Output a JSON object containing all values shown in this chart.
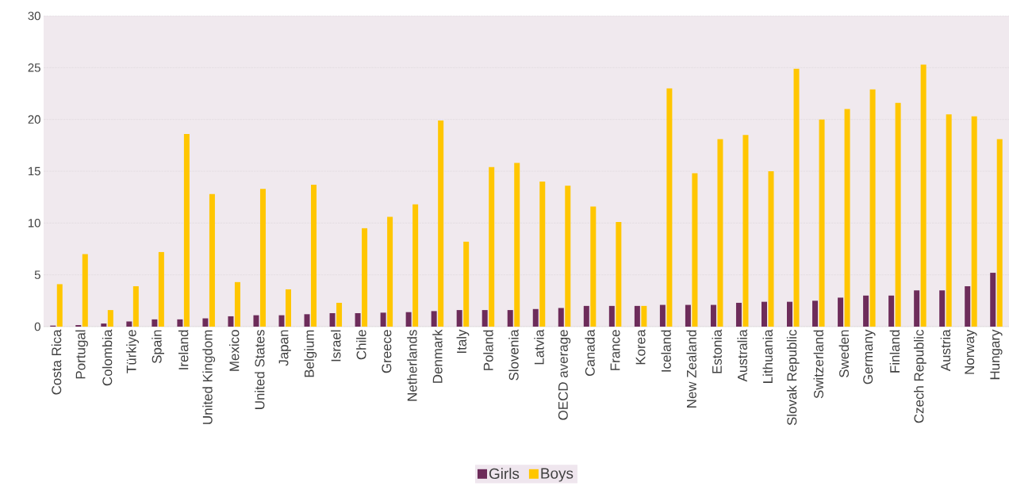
{
  "chart_data": {
    "type": "bar",
    "categories": [
      "Costa Rica",
      "Portugal",
      "Colombia",
      "Türkiye",
      "Spain",
      "Ireland",
      "United Kingdom",
      "Mexico",
      "United States",
      "Japan",
      "Belgium",
      "Israel",
      "Chile",
      "Greece",
      "Netherlands",
      "Denmark",
      "Italy",
      "Poland",
      "Slovenia",
      "Latvia",
      "OECD average",
      "Canada",
      "France",
      "Korea",
      "Iceland",
      "New Zealand",
      "Estonia",
      "Australia",
      "Lithuania",
      "Slovak Republic",
      "Switzerland",
      "Sweden",
      "Germany",
      "Finland",
      "Czech Republic",
      "Austria",
      "Norway",
      "Hungary"
    ],
    "series": [
      {
        "name": "Girls",
        "color": "#6d2c5a",
        "values": [
          0.1,
          0.15,
          0.3,
          0.5,
          0.7,
          0.7,
          0.8,
          1.0,
          1.1,
          1.1,
          1.2,
          1.3,
          1.3,
          1.35,
          1.4,
          1.5,
          1.6,
          1.6,
          1.6,
          1.7,
          1.8,
          2.0,
          2.0,
          2.0,
          2.1,
          2.1,
          2.1,
          2.3,
          2.4,
          2.4,
          2.5,
          2.8,
          3.0,
          3.0,
          3.5,
          3.5,
          3.9,
          5.2
        ]
      },
      {
        "name": "Boys",
        "color": "#ffc600",
        "values": [
          4.1,
          7.0,
          1.6,
          3.9,
          7.2,
          18.6,
          12.8,
          4.3,
          13.3,
          3.6,
          13.7,
          2.3,
          9.5,
          10.6,
          11.8,
          19.9,
          8.2,
          15.4,
          15.8,
          14.0,
          13.6,
          11.6,
          10.1,
          2.0,
          23.0,
          14.8,
          18.1,
          18.5,
          15.0,
          24.9,
          20.0,
          21.0,
          22.9,
          21.6,
          25.3,
          20.5,
          20.3,
          18.1
        ]
      }
    ],
    "ylim": [
      0,
      30
    ],
    "yticks": [
      0,
      5,
      10,
      15,
      20,
      25,
      30
    ],
    "grid": "y",
    "legend": "bottom"
  }
}
